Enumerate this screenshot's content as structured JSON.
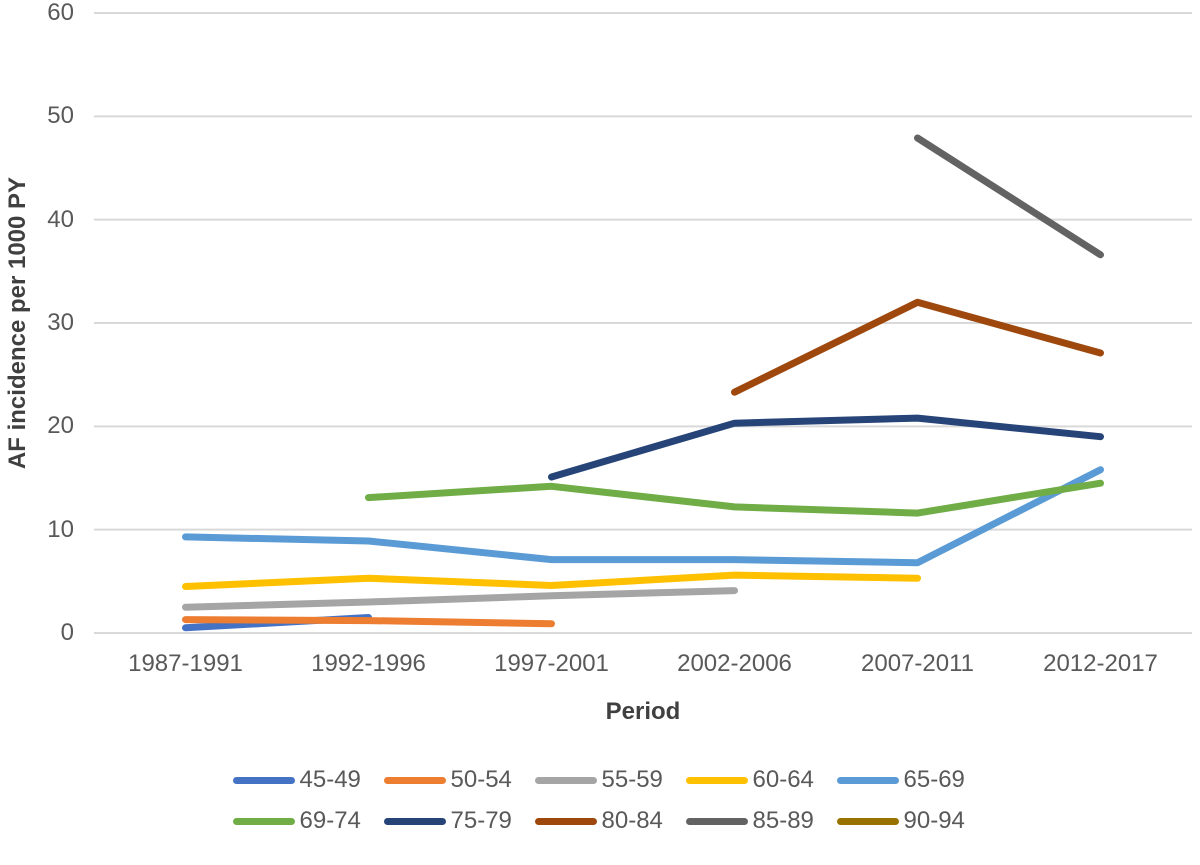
{
  "chart_data": {
    "type": "line",
    "title": "",
    "xlabel": "Period",
    "ylabel": "AF incidence per 1000 PY",
    "categories": [
      "1987-1991",
      "1992-1996",
      "1997-2001",
      "2002-2006",
      "2007-2011",
      "2012-2017"
    ],
    "ylim": [
      0,
      60
    ],
    "yticks": [
      0,
      10,
      20,
      30,
      40,
      50,
      60
    ],
    "grid": "horizontal-only",
    "gridline_color": "#d9d9d9",
    "tick_label_color": "#595959",
    "axis_title_color": "#404040",
    "legend_position": "bottom",
    "legend_rows": [
      [
        "45-49",
        "50-54",
        "55-59",
        "60-64",
        "65-69"
      ],
      [
        "69-74",
        "75-79",
        "80-84",
        "85-89",
        "90-94"
      ]
    ],
    "series": [
      {
        "name": "45-49",
        "color": "#4472C4",
        "values": [
          0.5,
          1.5,
          null,
          null,
          null,
          null
        ]
      },
      {
        "name": "50-54",
        "color": "#ED7D31",
        "values": [
          1.3,
          1.2,
          0.9,
          null,
          null,
          null
        ]
      },
      {
        "name": "55-59",
        "color": "#A5A5A5",
        "values": [
          2.5,
          3.0,
          3.6,
          4.1,
          null,
          null
        ]
      },
      {
        "name": "60-64",
        "color": "#FFC000",
        "values": [
          4.5,
          5.3,
          4.6,
          5.6,
          5.3,
          null
        ]
      },
      {
        "name": "65-69",
        "color": "#5B9BD5",
        "values": [
          9.3,
          8.9,
          7.1,
          7.1,
          6.8,
          15.8
        ]
      },
      {
        "name": "69-74",
        "color": "#70AD47",
        "values": [
          null,
          13.1,
          14.2,
          12.2,
          11.6,
          14.5
        ]
      },
      {
        "name": "75-79",
        "color": "#264478",
        "values": [
          null,
          null,
          15.1,
          20.3,
          20.8,
          19.0
        ]
      },
      {
        "name": "80-84",
        "color": "#9E480E",
        "values": [
          null,
          null,
          null,
          23.3,
          32.0,
          27.1
        ]
      },
      {
        "name": "85-89",
        "color": "#636363",
        "values": [
          null,
          null,
          null,
          null,
          47.9,
          36.6
        ]
      },
      {
        "name": "90-94",
        "color": "#997300",
        "values": [
          null,
          null,
          null,
          null,
          null,
          null
        ]
      }
    ]
  }
}
